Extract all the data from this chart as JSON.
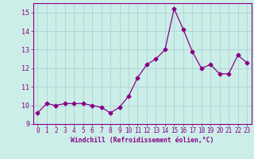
{
  "x": [
    0,
    1,
    2,
    3,
    4,
    5,
    6,
    7,
    8,
    9,
    10,
    11,
    12,
    13,
    14,
    15,
    16,
    17,
    18,
    19,
    20,
    21,
    22,
    23
  ],
  "y": [
    9.6,
    10.1,
    10.0,
    10.1,
    10.1,
    10.1,
    10.0,
    9.9,
    9.6,
    9.9,
    10.5,
    11.5,
    12.2,
    12.5,
    13.0,
    15.2,
    14.1,
    12.9,
    12.0,
    12.2,
    11.7,
    11.7,
    12.7,
    12.3
  ],
  "line_color": "#880088",
  "marker": "D",
  "marker_size": 2.5,
  "bg_color": "#cceee8",
  "grid_color": "#aacccc",
  "xlabel": "Windchill (Refroidissement éolien,°C)",
  "xlabel_color": "#880088",
  "tick_color": "#880088",
  "ylim": [
    9.0,
    15.5
  ],
  "yticks": [
    9,
    10,
    11,
    12,
    13,
    14,
    15
  ],
  "xlim": [
    -0.5,
    23.5
  ],
  "xticks": [
    0,
    1,
    2,
    3,
    4,
    5,
    6,
    7,
    8,
    9,
    10,
    11,
    12,
    13,
    14,
    15,
    16,
    17,
    18,
    19,
    20,
    21,
    22,
    23
  ],
  "spine_color": "#880088",
  "line_width": 0.9
}
